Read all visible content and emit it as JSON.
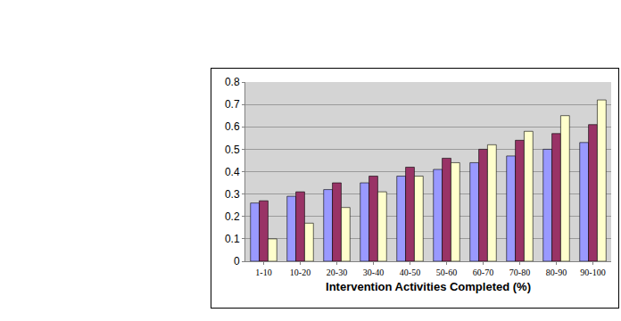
{
  "chart_data": {
    "type": "bar",
    "xlabel": "Intervention Activities Completed (%)",
    "categories": [
      "1-10",
      "10-20",
      "20-30",
      "30-40",
      "40-50",
      "50-60",
      "60-70",
      "70-80",
      "80-90",
      "90-100"
    ],
    "series": [
      {
        "color": "#9999ff",
        "values": [
          0.26,
          0.29,
          0.32,
          0.35,
          0.38,
          0.41,
          0.44,
          0.47,
          0.5,
          0.53
        ]
      },
      {
        "color": "#993366",
        "values": [
          0.27,
          0.31,
          0.35,
          0.38,
          0.42,
          0.46,
          0.5,
          0.54,
          0.57,
          0.61
        ]
      },
      {
        "color": "#ffffcc",
        "values": [
          0.1,
          0.17,
          0.24,
          0.31,
          0.38,
          0.44,
          0.52,
          0.58,
          0.65,
          0.72
        ]
      }
    ],
    "ylim": [
      0,
      0.8
    ],
    "yticks": [
      0,
      0.1,
      0.2,
      0.3,
      0.4,
      0.5,
      0.6,
      0.7,
      0.8
    ],
    "grid": true
  }
}
